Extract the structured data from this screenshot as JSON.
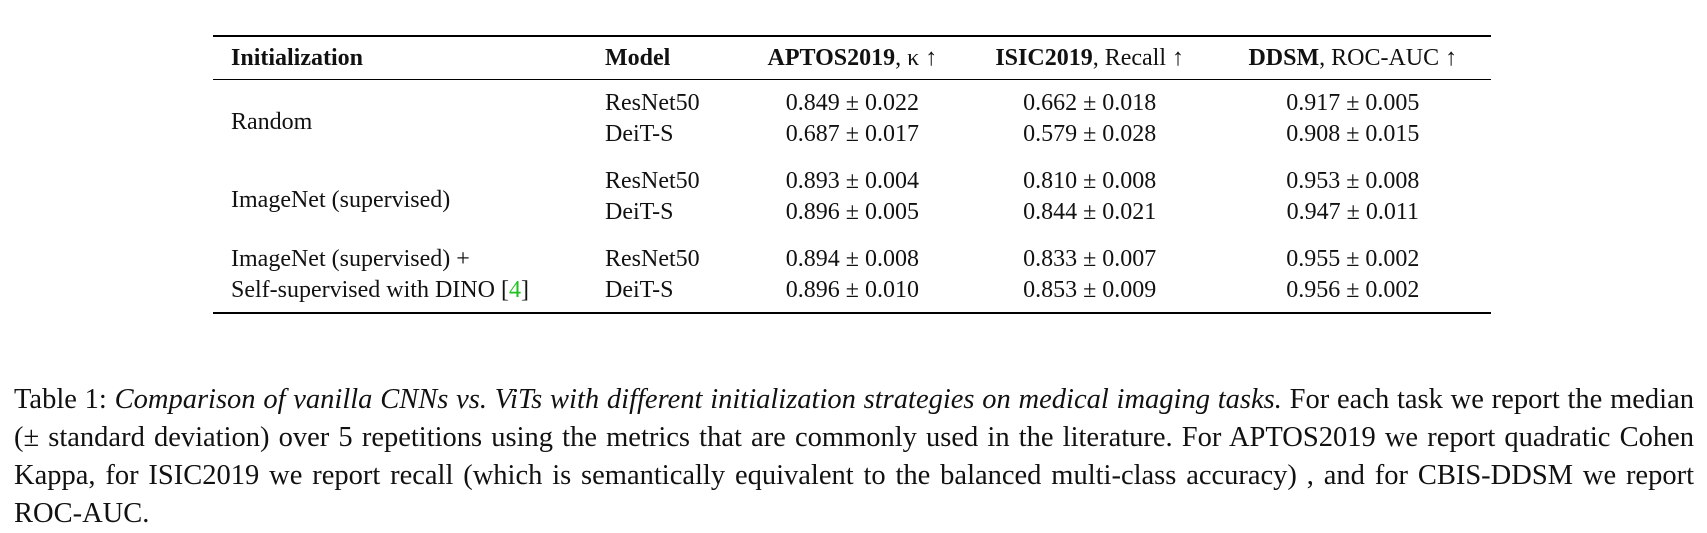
{
  "table": {
    "headers": {
      "initialization": "Initialization",
      "model": "Model",
      "aptos_name": "APTOS2019",
      "aptos_metric": ", κ ↑",
      "isic_name": "ISIC2019",
      "isic_metric": ", Recall ↑",
      "ddsm_name": "DDSM",
      "ddsm_metric": ", ROC-AUC ↑"
    },
    "groups": [
      {
        "initialization": "Random",
        "rows": [
          {
            "model": "ResNet50",
            "aptos": "0.849 ± 0.022",
            "isic": "0.662 ± 0.018",
            "ddsm": "0.917 ± 0.005"
          },
          {
            "model": "DeiT-S",
            "aptos": "0.687 ± 0.017",
            "isic": "0.579 ± 0.028",
            "ddsm": "0.908 ± 0.015"
          }
        ]
      },
      {
        "initialization": "ImageNet (supervised)",
        "rows": [
          {
            "model": "ResNet50",
            "aptos": "0.893 ± 0.004",
            "isic": "0.810 ± 0.008",
            "ddsm": "0.953 ± 0.008"
          },
          {
            "model": "DeiT-S",
            "aptos": "0.896 ± 0.005",
            "isic": "0.844 ± 0.021",
            "ddsm": "0.947 ± 0.011"
          }
        ]
      },
      {
        "initialization_line1": "ImageNet (supervised) +",
        "initialization_line2_prefix": "Self-supervised with DINO [",
        "initialization_line2_cite": "4",
        "initialization_line2_suffix": "]",
        "rows": [
          {
            "model": "ResNet50",
            "aptos": "0.894 ± 0.008",
            "isic": "0.833 ± 0.007",
            "ddsm": "0.955 ± 0.002"
          },
          {
            "model": "DeiT-S",
            "aptos": "0.896 ± 0.010",
            "isic": "0.853 ± 0.009",
            "ddsm": "0.956 ± 0.002"
          }
        ]
      }
    ],
    "colors": {
      "citation_link": "#1fc01f"
    }
  },
  "caption": {
    "label": "Table 1: ",
    "title": "Comparison of vanilla CNNs vs. ViTs with different initialization strategies on medical imaging tasks.",
    "body": " For each task we report the median (± standard deviation) over 5 repetitions using the metrics that are commonly used in the literature. For APTOS2019 we report quadratic Cohen Kappa, for ISIC2019 we report recall (which is semantically equivalent to the balanced multi-class accuracy) , and for CBIS-DDSM we report ROC-AUC."
  }
}
